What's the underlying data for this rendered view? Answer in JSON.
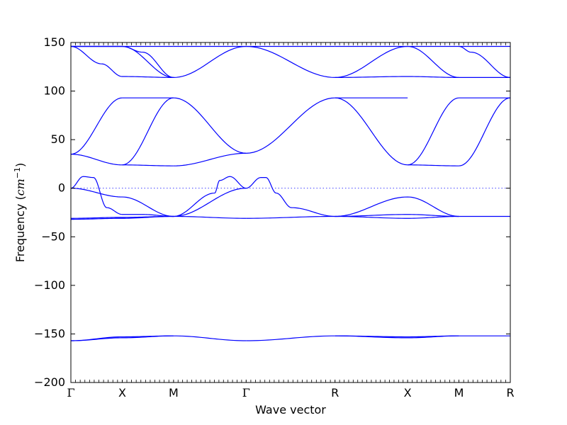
{
  "chart_data": {
    "type": "line",
    "title": "",
    "xlabel": "Wave vector",
    "ylabel": {
      "prefix": "Frequency (",
      "unit": "cm",
      "exponent": "−1",
      "suffix": ")"
    },
    "ylim": [
      -200,
      150
    ],
    "yticks": [
      {
        "value": 150,
        "label": "150"
      },
      {
        "value": 100,
        "label": "100"
      },
      {
        "value": 50,
        "label": "50"
      },
      {
        "value": 0,
        "label": "0"
      },
      {
        "value": -50,
        "label": "−50"
      },
      {
        "value": -100,
        "label": "−100"
      },
      {
        "value": -150,
        "label": "−150"
      },
      {
        "value": -200,
        "label": "−200"
      }
    ],
    "high_symmetry_points": [
      {
        "label": "Γ",
        "position": 0
      },
      {
        "label": "X",
        "position": 0.5
      },
      {
        "label": "M",
        "position": 1.0
      },
      {
        "label": "Γ",
        "position": 1.7071
      },
      {
        "label": "R",
        "position": 2.5731
      },
      {
        "label": "X",
        "position": 3.2802
      },
      {
        "label": "M",
        "position": 3.7802
      },
      {
        "label": "R",
        "position": 4.2802
      }
    ],
    "series_color": "#0000ff",
    "zero_line": {
      "y": 0,
      "style": "dotted"
    },
    "bands": [
      {
        "x": [
          0,
          0.5,
          1.0
        ],
        "y": [
          146,
          146,
          114
        ]
      },
      {
        "x": [
          0,
          0.3,
          0.5,
          1.0
        ],
        "y": [
          146,
          128,
          115,
          114
        ]
      },
      {
        "x": [
          0,
          0.5,
          0.7,
          1.0
        ],
        "y": [
          146,
          146,
          140,
          114
        ]
      },
      {
        "x": [
          0,
          0.5,
          1.0
        ],
        "y": [
          146,
          146,
          146
        ]
      },
      {
        "x": [
          1.0,
          1.7071
        ],
        "y": [
          114,
          146
        ]
      },
      {
        "x": [
          1.0,
          1.7071
        ],
        "y": [
          146,
          146
        ]
      },
      {
        "x": [
          1.7071,
          2.5731
        ],
        "y": [
          146,
          114
        ]
      },
      {
        "x": [
          1.7071,
          2.5731
        ],
        "y": [
          146,
          146
        ]
      },
      {
        "x": [
          2.5731,
          3.2802
        ],
        "y": [
          114,
          146
        ]
      },
      {
        "x": [
          2.5731,
          3.2802,
          3.7802
        ],
        "y": [
          114,
          115,
          114
        ]
      },
      {
        "x": [
          2.5731,
          3.2802,
          3.7802
        ],
        "y": [
          146,
          146,
          146
        ]
      },
      {
        "x": [
          3.2802,
          3.7802
        ],
        "y": [
          146,
          114
        ]
      },
      {
        "x": [
          3.7802,
          3.9,
          4.2802
        ],
        "y": [
          146,
          140,
          114
        ]
      },
      {
        "x": [
          3.7802,
          4.2802
        ],
        "y": [
          114,
          114
        ]
      },
      {
        "x": [
          3.7802,
          4.2802
        ],
        "y": [
          146,
          146
        ]
      },
      {
        "x": [
          0,
          0.5
        ],
        "y": [
          35,
          93
        ]
      },
      {
        "x": [
          0,
          0.5
        ],
        "y": [
          35,
          24
        ]
      },
      {
        "x": [
          0.5,
          1.0
        ],
        "y": [
          24,
          93
        ]
      },
      {
        "x": [
          0.5,
          1.0
        ],
        "y": [
          93,
          93
        ]
      },
      {
        "x": [
          0.5,
          1.0
        ],
        "y": [
          24,
          23
        ]
      },
      {
        "x": [
          1.0,
          1.7071
        ],
        "y": [
          93,
          36
        ]
      },
      {
        "x": [
          1.0,
          1.7071
        ],
        "y": [
          23,
          36
        ]
      },
      {
        "x": [
          1.7071,
          2.5731
        ],
        "y": [
          36,
          93
        ]
      },
      {
        "x": [
          2.5731,
          3.2802
        ],
        "y": [
          93,
          24
        ]
      },
      {
        "x": [
          2.5731,
          3.2802
        ],
        "y": [
          93,
          93
        ]
      },
      {
        "x": [
          3.2802,
          3.7802
        ],
        "y": [
          24,
          23
        ]
      },
      {
        "x": [
          3.2802,
          3.7802
        ],
        "y": [
          24,
          93
        ]
      },
      {
        "x": [
          3.7802,
          4.2802
        ],
        "y": [
          23,
          93
        ]
      },
      {
        "x": [
          3.7802,
          4.2802
        ],
        "y": [
          93,
          93
        ]
      },
      {
        "x": [
          0,
          0.12,
          0.22,
          0.35,
          0.5,
          0.7,
          1.0
        ],
        "y": [
          0,
          12,
          11,
          -20,
          -27,
          -27,
          -29
        ]
      },
      {
        "x": [
          0,
          0.5,
          1.0
        ],
        "y": [
          0,
          -9,
          -29
        ]
      },
      {
        "x": [
          0,
          0.5,
          1.0
        ],
        "y": [
          -31,
          -30,
          -29
        ]
      },
      {
        "x": [
          0,
          0.5,
          1.0
        ],
        "y": [
          -32,
          -31,
          -29
        ]
      },
      {
        "x": [
          1.0,
          1.4,
          1.45,
          1.55,
          1.7071
        ],
        "y": [
          -29,
          -5,
          8,
          12,
          0
        ]
      },
      {
        "x": [
          1.0,
          1.7071
        ],
        "y": [
          -29,
          0
        ]
      },
      {
        "x": [
          1.0,
          1.7071
        ],
        "y": [
          -29,
          -31
        ]
      },
      {
        "x": [
          1.7071,
          1.85,
          1.9,
          2.0,
          2.15,
          2.5731
        ],
        "y": [
          0,
          11,
          11,
          -5,
          -20,
          -29
        ]
      },
      {
        "x": [
          1.7071,
          2.5731
        ],
        "y": [
          -31,
          -29
        ]
      },
      {
        "x": [
          2.5731,
          3.2802,
          3.7802
        ],
        "y": [
          -29,
          -9,
          -29
        ]
      },
      {
        "x": [
          2.5731,
          3.2802,
          3.7802
        ],
        "y": [
          -29,
          -27,
          -29
        ]
      },
      {
        "x": [
          2.5731,
          3.2802,
          3.7802
        ],
        "y": [
          -29,
          -31,
          -29
        ]
      },
      {
        "x": [
          3.7802,
          4.2802
        ],
        "y": [
          -29,
          -29
        ]
      },
      {
        "x": [
          0,
          0.5,
          1.0
        ],
        "y": [
          -157,
          -154,
          -152
        ]
      },
      {
        "x": [
          0,
          0.5,
          1.0
        ],
        "y": [
          -157,
          -153,
          -152
        ]
      },
      {
        "x": [
          1.0,
          1.7071
        ],
        "y": [
          -152,
          -157
        ]
      },
      {
        "x": [
          1.7071,
          2.5731
        ],
        "y": [
          -157,
          -152
        ]
      },
      {
        "x": [
          2.5731,
          3.2802,
          3.7802
        ],
        "y": [
          -152,
          -154,
          -152
        ]
      },
      {
        "x": [
          2.5731,
          3.2802,
          3.7802
        ],
        "y": [
          -152,
          -153,
          -152
        ]
      },
      {
        "x": [
          3.7802,
          4.2802
        ],
        "y": [
          -152,
          -152
        ]
      }
    ]
  }
}
